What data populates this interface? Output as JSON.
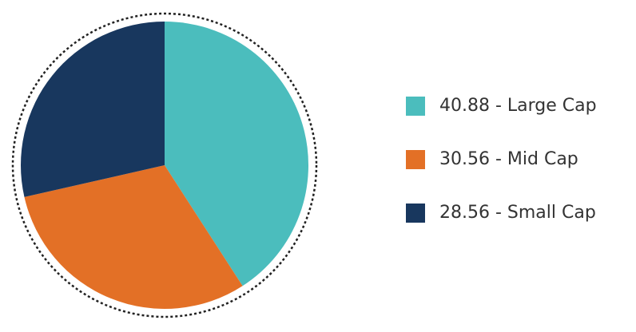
{
  "chart_data": {
    "type": "pie",
    "categories": [
      "40.88 - Large Cap",
      "30.56 - Mid Cap",
      "28.56 - Small Cap"
    ],
    "values": [
      40.88,
      30.56,
      28.56
    ],
    "colors": [
      "#4bbdbd",
      "#e37026",
      "#18375e"
    ],
    "legend": "right"
  }
}
